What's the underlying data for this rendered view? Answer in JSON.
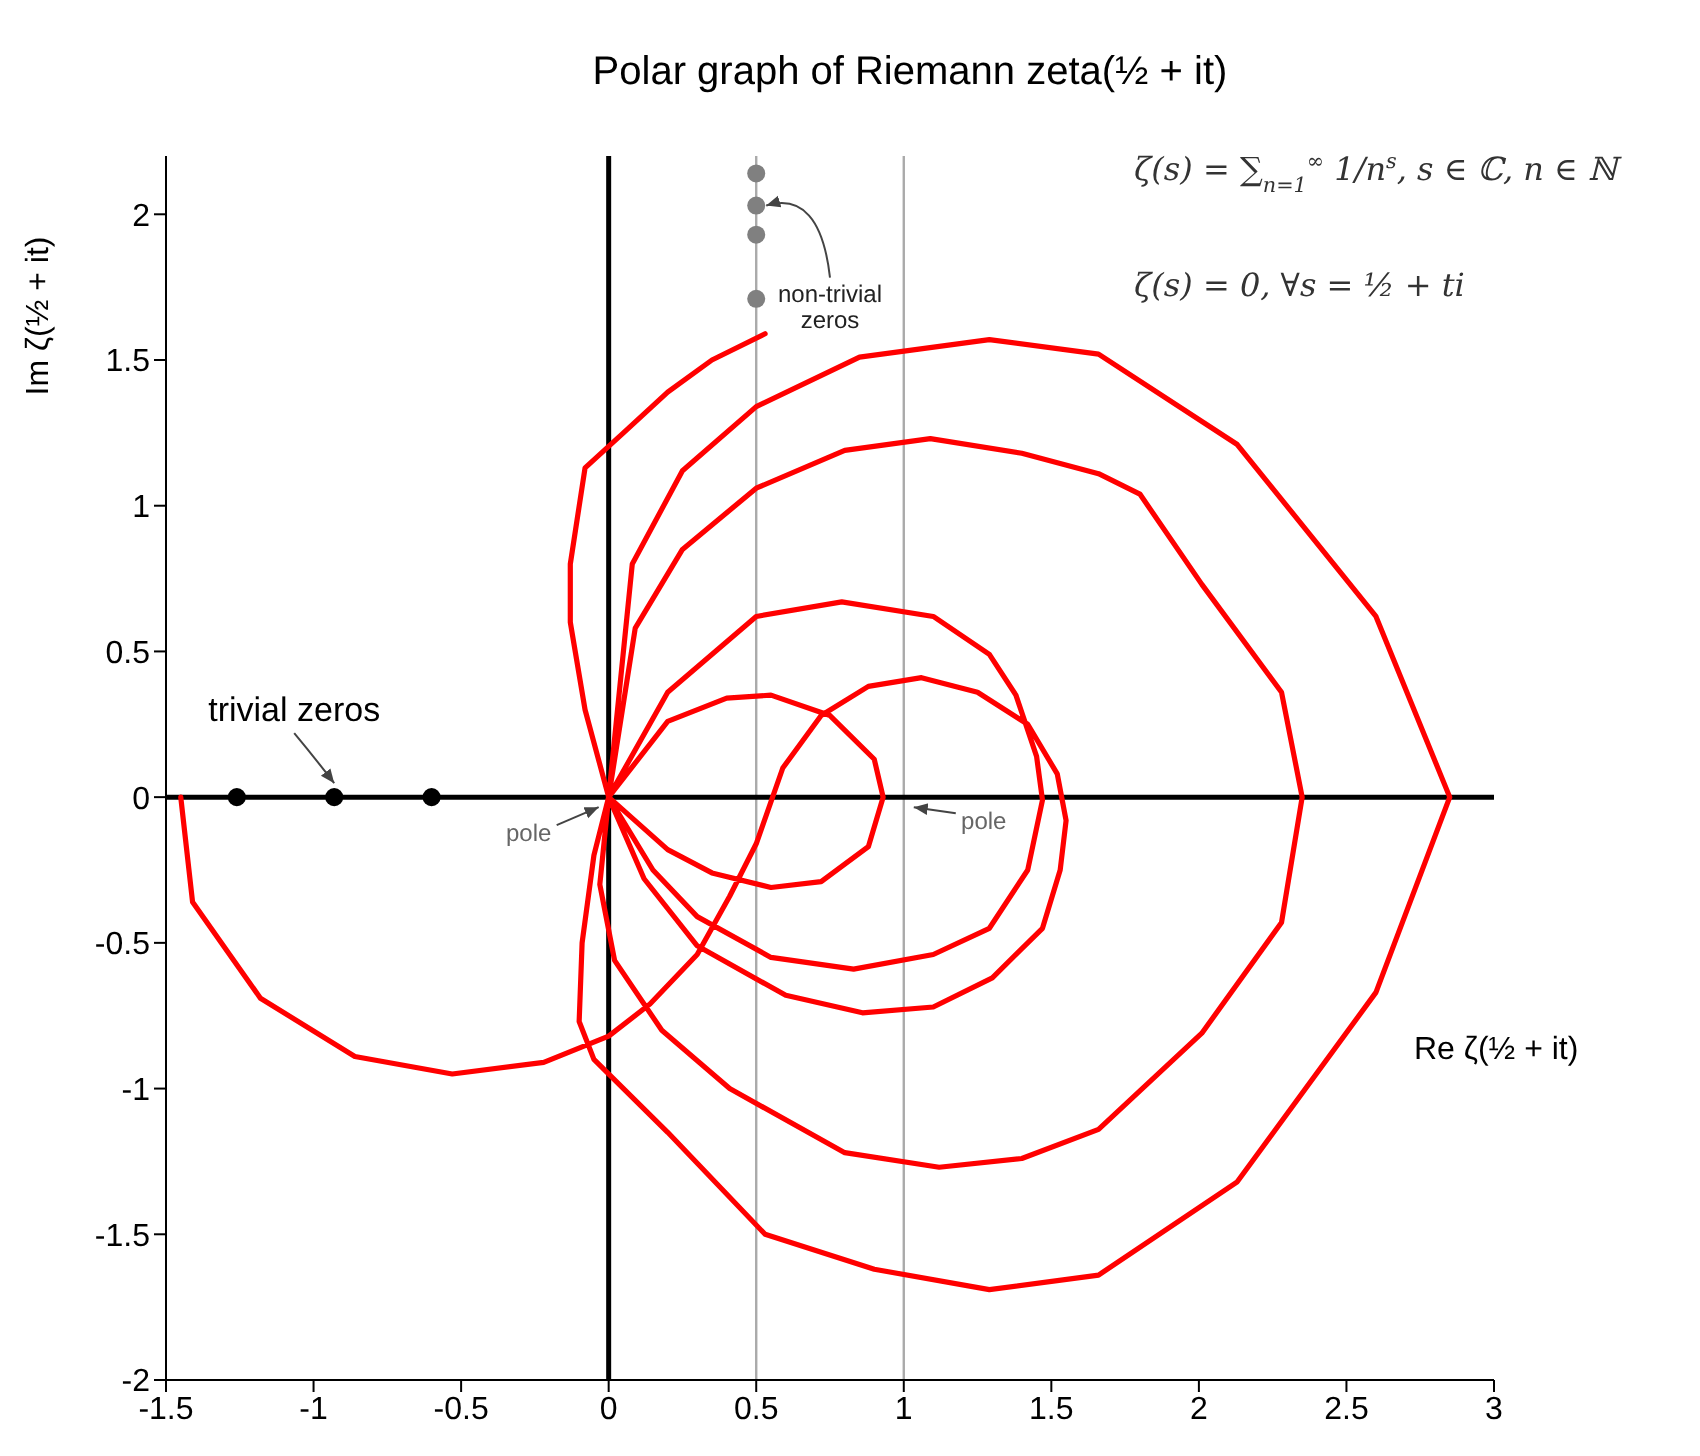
{
  "chart_data": {
    "type": "line",
    "title": "Polar graph of Riemann zeta(½ + it)",
    "xlabel": "Re ζ(½ + it)",
    "ylabel": "Im ζ(½ + it)",
    "xlim": [
      -1.5,
      3
    ],
    "xticks": [
      -1.5,
      -1,
      -0.5,
      0,
      0.5,
      1,
      1.5,
      2,
      2.5,
      3
    ],
    "ylim": [
      -2,
      2.2
    ],
    "yticks": [
      -2,
      -1.5,
      -1,
      -0.5,
      0,
      0.5,
      1,
      1.5,
      2
    ],
    "series": [
      {
        "color": "#ff0000",
        "x": [
          -1.45,
          -1.41,
          -1.18,
          -0.86,
          -0.53,
          -0.22,
          0,
          0.14,
          0.3,
          0.41,
          0.5,
          0.59,
          0.72,
          0.88,
          1.06,
          1.25,
          1.42,
          1.52,
          1.55,
          1.53,
          1.47,
          1.3,
          1.1,
          0.86,
          0.6,
          0.3,
          0.12,
          0,
          0.15,
          0.3,
          0.55,
          0.83,
          1.1,
          1.29,
          1.42,
          1.47,
          1.45,
          1.38,
          1.29,
          1.1,
          0.79,
          0.5,
          0.2,
          0,
          0.2,
          0.4,
          0.55,
          0.75,
          0.9,
          0.93,
          0.88,
          0.72,
          0.55,
          0.35,
          0.2,
          0,
          0.09,
          0.25,
          0.5,
          0.8,
          1.09,
          1.4,
          1.66,
          1.8,
          2.01,
          2.28,
          2.35,
          2.28,
          2.01,
          1.66,
          1.4,
          1.12,
          0.8,
          0.41,
          0.18,
          0.02,
          -0.03,
          0,
          0.08,
          0.25,
          0.5,
          0.85,
          1.29,
          1.66,
          2.13,
          2.6,
          2.85,
          2.6,
          2.13,
          1.66,
          1.29,
          0.9,
          0.53,
          0.2,
          -0.05,
          -0.1,
          -0.09,
          -0.05,
          0,
          -0.08,
          -0.13,
          -0.13,
          -0.08,
          0.05,
          0.2,
          0.35,
          0.53
        ],
        "values": [
          0,
          -0.36,
          -0.69,
          -0.89,
          -0.95,
          -0.91,
          -0.82,
          -0.71,
          -0.54,
          -0.34,
          -0.16,
          0.1,
          0.28,
          0.38,
          0.41,
          0.36,
          0.25,
          0.08,
          -0.08,
          -0.25,
          -0.45,
          -0.62,
          -0.72,
          -0.74,
          -0.68,
          -0.51,
          -0.28,
          0,
          -0.25,
          -0.41,
          -0.55,
          -0.59,
          -0.54,
          -0.45,
          -0.25,
          -0.01,
          0.14,
          0.35,
          0.49,
          0.62,
          0.67,
          0.62,
          0.36,
          0,
          0.26,
          0.34,
          0.35,
          0.28,
          0.13,
          0,
          -0.17,
          -0.29,
          -0.31,
          -0.26,
          -0.18,
          0,
          0.58,
          0.85,
          1.06,
          1.19,
          1.23,
          1.18,
          1.11,
          1.04,
          0.73,
          0.36,
          0,
          -0.43,
          -0.81,
          -1.14,
          -1.24,
          -1.27,
          -1.22,
          -1,
          -0.8,
          -0.56,
          -0.3,
          0,
          0.8,
          1.12,
          1.34,
          1.51,
          1.57,
          1.52,
          1.21,
          0.62,
          0,
          -0.67,
          -1.32,
          -1.64,
          -1.69,
          -1.62,
          -1.5,
          -1.15,
          -0.9,
          -0.77,
          -0.5,
          -0.2,
          0,
          0.3,
          0.6,
          0.8,
          1.13,
          1.25,
          1.39,
          1.5,
          1.59
        ]
      },
      {
        "type": "scatter",
        "color": "#000000",
        "x": [
          -1.26,
          -0.93,
          -0.6
        ],
        "values": [
          0,
          0,
          0
        ]
      },
      {
        "type": "scatter",
        "color": "#808080",
        "x": [
          0.5,
          0.5,
          0.5,
          0.5
        ],
        "values": [
          2.14,
          2.03,
          1.93,
          1.71
        ]
      }
    ],
    "ref_lines": [
      {
        "axis": "x",
        "value": 0.5,
        "color": "#aaaaaa"
      },
      {
        "axis": "x",
        "value": 1,
        "color": "#aaaaaa"
      },
      {
        "axis": "x",
        "value": 0,
        "color": "#000000"
      },
      {
        "axis": "y",
        "value": 0,
        "color": "#000000"
      }
    ],
    "annotations": [
      "ζ(s) = ∑$_{n=1}$$^{∞}$ 1/n$^{s}$, s ∈ ℂ, n ∈ ℕ",
      "ζ(s) = 0, ∀s = ½ + ti",
      {
        "text": "trivial zeros",
        "x": -0.93,
        "y": 0
      },
      {
        "text": "non-trivial zeros",
        "x": 0.5,
        "y": 2.03
      },
      {
        "text": "pole",
        "x": 0,
        "y": 0
      },
      {
        "text": "pole",
        "x": 1,
        "y": 0
      }
    ]
  }
}
